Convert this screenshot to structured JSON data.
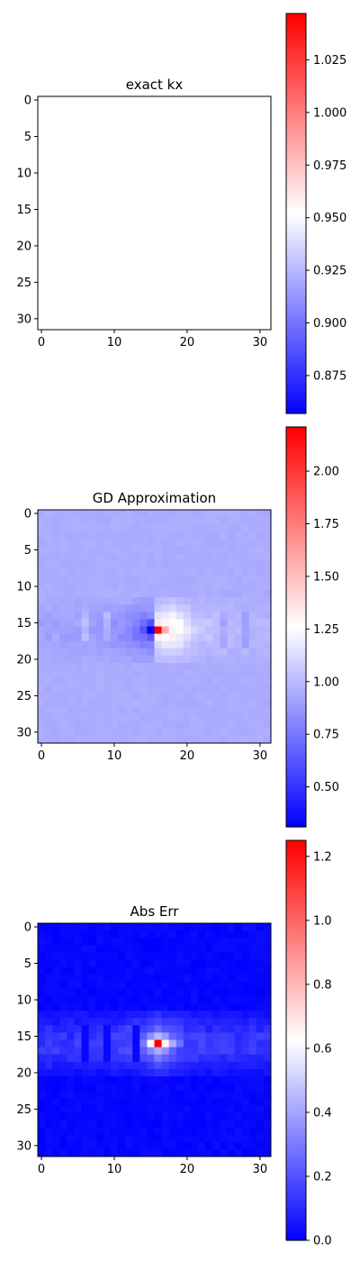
{
  "chart_data": [
    {
      "type": "heatmap",
      "title": "exact kx",
      "grid_size": [
        32,
        32
      ],
      "x_ticks": [
        "0",
        "10",
        "20",
        "30"
      ],
      "y_ticks": [
        "0",
        "5",
        "10",
        "15",
        "20",
        "25",
        "30"
      ],
      "colorbar": {
        "cmap": "bwr",
        "vmin": 0.857,
        "vmax": 1.047,
        "ticks": [
          "0.875",
          "0.900",
          "0.925",
          "0.950",
          "0.975",
          "1.000",
          "1.025"
        ]
      },
      "field": {
        "baseline": 0.952
      }
    },
    {
      "type": "heatmap",
      "title": "GD Approximation",
      "grid_size": [
        32,
        32
      ],
      "x_ticks": [
        "0",
        "10",
        "20",
        "30"
      ],
      "y_ticks": [
        "0",
        "5",
        "10",
        "15",
        "20",
        "25",
        "30"
      ],
      "colorbar": {
        "cmap": "bwr",
        "vmin": 0.31,
        "vmax": 2.21,
        "ticks": [
          "0.50",
          "0.75",
          "1.00",
          "1.25",
          "1.50",
          "1.75",
          "2.00"
        ]
      },
      "field": {
        "baseline": 0.95,
        "band_rows": [
          12,
          20
        ],
        "center": [
          16,
          16
        ],
        "peak_value": 2.21,
        "min_value": 0.31
      }
    },
    {
      "type": "heatmap",
      "title": "Abs Err",
      "grid_size": [
        32,
        32
      ],
      "x_ticks": [
        "0",
        "10",
        "20",
        "30"
      ],
      "y_ticks": [
        "0",
        "5",
        "10",
        "15",
        "20",
        "25",
        "30"
      ],
      "colorbar": {
        "cmap": "bwr",
        "vmin": 0.0,
        "vmax": 1.25,
        "ticks": [
          "0.0",
          "0.2",
          "0.4",
          "0.6",
          "0.8",
          "1.0",
          "1.2"
        ]
      },
      "field": {
        "baseline": 0.0,
        "band_rows": [
          12,
          20
        ],
        "center": [
          16,
          16
        ],
        "peak_value": 1.25
      }
    }
  ]
}
